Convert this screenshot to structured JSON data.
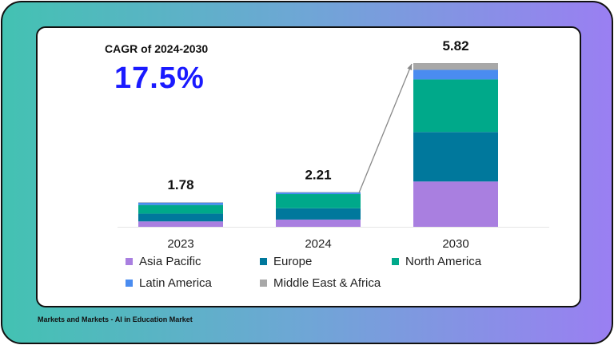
{
  "cagr": {
    "label": "CAGR of 2024-2030",
    "value": "17.5%"
  },
  "footer": "Markets and Markets - AI in Education Market",
  "chart_data": {
    "type": "bar",
    "stacked": true,
    "categories": [
      "2023",
      "2024",
      "2030"
    ],
    "totals": [
      "1.78",
      "2.21",
      "5.82"
    ],
    "series": [
      {
        "name": "Asia Pacific",
        "color": "#a97fe0",
        "values": [
          0.39,
          0.46,
          1.61
        ]
      },
      {
        "name": "Europe",
        "color": "#00789c",
        "values": [
          0.56,
          0.72,
          1.76
        ]
      },
      {
        "name": "North America",
        "color": "#00a98a",
        "values": [
          0.63,
          0.9,
          1.87
        ]
      },
      {
        "name": "Latin America",
        "color": "#4a8cf0",
        "values": [
          0.17,
          0.1,
          0.34
        ]
      },
      {
        "name": "Middle East & Africa",
        "color": "#a8a8a8",
        "values": [
          0.03,
          0.03,
          0.24
        ]
      }
    ],
    "legend_position": "bottom",
    "grid": false,
    "annotation": "arrow from 2024 to 2030"
  }
}
